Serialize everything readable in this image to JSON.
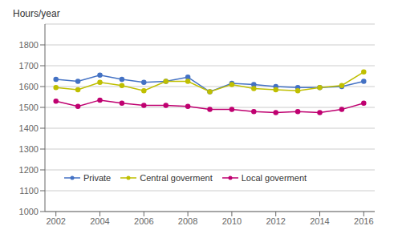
{
  "chart_data": {
    "type": "line",
    "ylabel": "Hours/year",
    "x": [
      2002,
      2003,
      2004,
      2005,
      2006,
      2007,
      2008,
      2009,
      2010,
      2011,
      2012,
      2013,
      2014,
      2015,
      2016
    ],
    "series": [
      {
        "name": "Private",
        "color": "#4472C4",
        "values": [
          1635,
          1625,
          1655,
          1635,
          1620,
          1625,
          1645,
          1575,
          1615,
          1610,
          1600,
          1595,
          1595,
          1600,
          1625
        ]
      },
      {
        "name": "Central goverment",
        "color": "#BFBF00",
        "values": [
          1595,
          1585,
          1620,
          1605,
          1580,
          1625,
          1625,
          1575,
          1610,
          1590,
          1585,
          1580,
          1595,
          1605,
          1670
        ]
      },
      {
        "name": "Local goverment",
        "color": "#BF0070",
        "values": [
          1530,
          1505,
          1535,
          1520,
          1510,
          1510,
          1505,
          1490,
          1490,
          1480,
          1475,
          1480,
          1475,
          1490,
          1520
        ]
      }
    ],
    "xlim": [
      2001.5,
      2016.5
    ],
    "xticks": [
      2002,
      2004,
      2006,
      2008,
      2010,
      2012,
      2014,
      2016
    ],
    "ylim": [
      1000,
      1900
    ],
    "yticks": [
      1000,
      1100,
      1200,
      1300,
      1400,
      1500,
      1600,
      1700,
      1800
    ],
    "grid": "y",
    "legend": "lower left",
    "marker": "circle"
  }
}
